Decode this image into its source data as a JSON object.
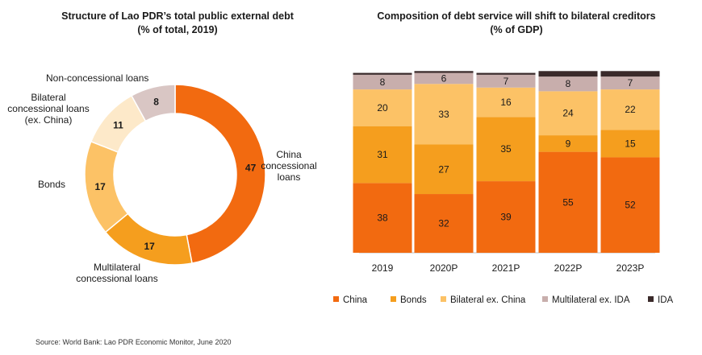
{
  "colors": {
    "china": "#f26a10",
    "bonds": "#f59e1e",
    "bilateral": "#fcc266",
    "bilateral_light": "#fde9c9",
    "multilateral_ex_ida": "#c8aeac",
    "nonconcessional": "#d9c6c4",
    "ida": "#3a2a2a"
  },
  "source": "Source: World Bank: Lao PDR Economic Monitor, June 2020",
  "chart_data": [
    {
      "type": "pie",
      "title": "Structure of Lao PDR’s total public external debt",
      "subtitle": "(% of total, 2019)",
      "slices": [
        {
          "label": "China concessional loans",
          "value": 47,
          "color": "#f26a10"
        },
        {
          "label": "Multilateral concessional loans",
          "value": 17,
          "color": "#f59e1e"
        },
        {
          "label": "Bonds",
          "value": 17,
          "color": "#fcc266"
        },
        {
          "label": "Bilateral concessional loans (ex. China)",
          "value": 11,
          "color": "#fde9c9"
        },
        {
          "label": "Non-concessional loans",
          "value": 8,
          "color": "#d9c6c4"
        }
      ]
    },
    {
      "type": "bar",
      "stacked": true,
      "title": "Composition of debt service will shift to bilateral creditors",
      "subtitle": "(% of GDP)",
      "categories": [
        "2019",
        "2020P",
        "2021P",
        "2022P",
        "2023P"
      ],
      "series": [
        {
          "name": "China",
          "values": [
            38,
            32,
            39,
            55,
            52
          ],
          "color": "#f26a10"
        },
        {
          "name": "Bonds",
          "values": [
            31,
            27,
            35,
            9,
            15
          ],
          "color": "#f59e1e"
        },
        {
          "name": "Bilateral ex. China",
          "values": [
            20,
            33,
            16,
            24,
            22
          ],
          "color": "#fcc266"
        },
        {
          "name": "Multilateral ex. IDA",
          "values": [
            8,
            6,
            7,
            8,
            7
          ],
          "color": "#c8aeac"
        },
        {
          "name": "IDA",
          "values": [
            1,
            1,
            1,
            3,
            3
          ],
          "color": "#3a2a2a"
        }
      ],
      "ylim": [
        0,
        100
      ],
      "legend": "bottom"
    }
  ]
}
